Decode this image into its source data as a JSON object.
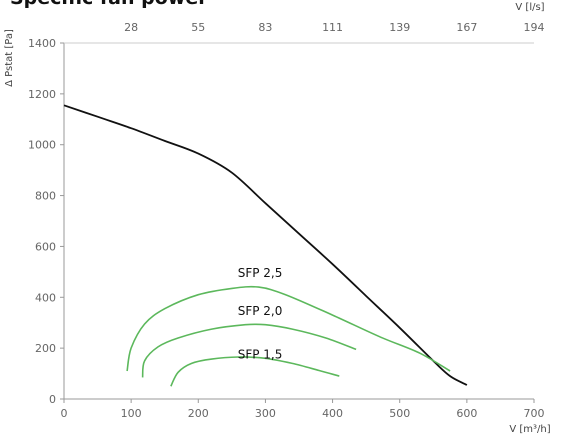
{
  "chart_data": {
    "type": "line",
    "title": "Specific fan power",
    "xlabel": "V [m³/h]",
    "ylabel": "Δ Pstat [Pa]",
    "x2label": "V [l/s]",
    "xlim": [
      0,
      700
    ],
    "ylim": [
      0,
      1400
    ],
    "x_ticks": [
      0,
      100,
      200,
      300,
      400,
      500,
      600,
      700
    ],
    "y_ticks": [
      0,
      200,
      400,
      600,
      800,
      1000,
      1200,
      1400
    ],
    "x2_ticks": [
      {
        "label": "28",
        "x": 100
      },
      {
        "label": "55",
        "x": 200
      },
      {
        "label": "83",
        "x": 300
      },
      {
        "label": "111",
        "x": 400
      },
      {
        "label": "139",
        "x": 500
      },
      {
        "label": "167",
        "x": 600
      },
      {
        "label": "194",
        "x": 700
      }
    ],
    "grid": false,
    "fan_curve": {
      "color": "#111111",
      "points": [
        [
          0,
          1155
        ],
        [
          50,
          1110
        ],
        [
          100,
          1065
        ],
        [
          150,
          1015
        ],
        [
          200,
          965
        ],
        [
          250,
          890
        ],
        [
          300,
          770
        ],
        [
          350,
          650
        ],
        [
          400,
          530
        ],
        [
          450,
          405
        ],
        [
          500,
          280
        ],
        [
          550,
          150
        ],
        [
          575,
          90
        ],
        [
          600,
          55
        ]
      ]
    },
    "sfp_series": [
      {
        "name": "SFP 2,5",
        "color": "#5cb85c",
        "label_at": [
          292,
          480
        ],
        "points": [
          [
            94,
            110
          ],
          [
            100,
            200
          ],
          [
            120,
            295
          ],
          [
            150,
            355
          ],
          [
            200,
            410
          ],
          [
            250,
            435
          ],
          [
            290,
            440
          ],
          [
            330,
            410
          ],
          [
            400,
            330
          ],
          [
            470,
            245
          ],
          [
            530,
            180
          ],
          [
            575,
            110
          ]
        ]
      },
      {
        "name": "SFP 2,0",
        "color": "#5cb85c",
        "label_at": [
          292,
          330
        ],
        "points": [
          [
            117,
            85
          ],
          [
            120,
            150
          ],
          [
            140,
            205
          ],
          [
            170,
            240
          ],
          [
            220,
            275
          ],
          [
            270,
            292
          ],
          [
            300,
            292
          ],
          [
            340,
            275
          ],
          [
            390,
            240
          ],
          [
            435,
            195
          ]
        ]
      },
      {
        "name": "SFP 1,5",
        "color": "#5cb85c",
        "label_at": [
          292,
          160
        ],
        "points": [
          [
            159,
            50
          ],
          [
            170,
            105
          ],
          [
            190,
            140
          ],
          [
            220,
            157
          ],
          [
            260,
            165
          ],
          [
            300,
            160
          ],
          [
            340,
            140
          ],
          [
            380,
            112
          ],
          [
            410,
            90
          ]
        ]
      }
    ]
  }
}
